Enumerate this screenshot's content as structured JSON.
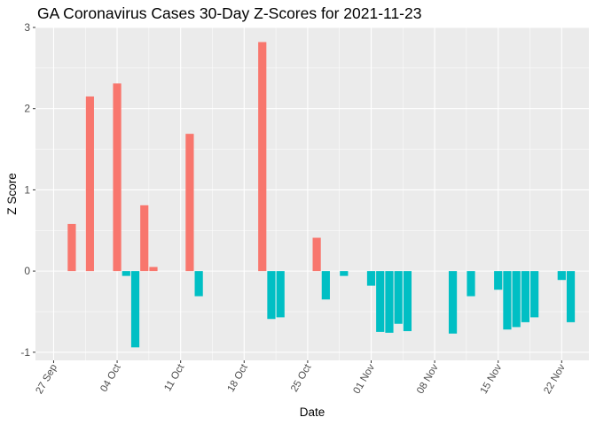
{
  "chart_data": {
    "type": "bar",
    "title": "GA Coronavirus Cases 30-Day Z-Scores for 2021-11-23",
    "xlabel": "Date",
    "ylabel": "Z Score",
    "ylim": [
      -1.1,
      3.0
    ],
    "y_ticks": [
      -1,
      0,
      1,
      2,
      3
    ],
    "x_ticks": [
      "27 Sep",
      "04 Oct",
      "11 Oct",
      "18 Oct",
      "25 Oct",
      "01 Nov",
      "08 Nov",
      "15 Nov",
      "22 Nov"
    ],
    "x_tick_dates": [
      "2021-09-27",
      "2021-10-04",
      "2021-10-11",
      "2021-10-18",
      "2021-10-25",
      "2021-11-01",
      "2021-11-08",
      "2021-11-15",
      "2021-11-22"
    ],
    "x_range": [
      "2021-09-25",
      "2021-11-25"
    ],
    "grid": true,
    "legend": "none",
    "colors": {
      "positive": "#F8766D",
      "negative": "#00BFC4",
      "panel": "#EBEBEB",
      "grid": "#FFFFFF"
    },
    "bars": [
      {
        "date": "2021-09-29",
        "value": 0.58
      },
      {
        "date": "2021-10-01",
        "value": 2.15
      },
      {
        "date": "2021-10-04",
        "value": 2.31
      },
      {
        "date": "2021-10-05",
        "value": -0.06
      },
      {
        "date": "2021-10-06",
        "value": -0.94
      },
      {
        "date": "2021-10-07",
        "value": 0.81
      },
      {
        "date": "2021-10-08",
        "value": 0.05
      },
      {
        "date": "2021-10-12",
        "value": 1.69
      },
      {
        "date": "2021-10-13",
        "value": -0.31
      },
      {
        "date": "2021-10-20",
        "value": 2.82
      },
      {
        "date": "2021-10-21",
        "value": -0.59
      },
      {
        "date": "2021-10-22",
        "value": -0.57
      },
      {
        "date": "2021-10-26",
        "value": 0.41
      },
      {
        "date": "2021-10-27",
        "value": -0.35
      },
      {
        "date": "2021-10-29",
        "value": -0.06
      },
      {
        "date": "2021-11-01",
        "value": -0.18
      },
      {
        "date": "2021-11-02",
        "value": -0.75
      },
      {
        "date": "2021-11-03",
        "value": -0.76
      },
      {
        "date": "2021-11-04",
        "value": -0.65
      },
      {
        "date": "2021-11-05",
        "value": -0.74
      },
      {
        "date": "2021-11-10",
        "value": -0.77
      },
      {
        "date": "2021-11-12",
        "value": -0.31
      },
      {
        "date": "2021-11-15",
        "value": -0.23
      },
      {
        "date": "2021-11-16",
        "value": -0.72
      },
      {
        "date": "2021-11-17",
        "value": -0.69
      },
      {
        "date": "2021-11-18",
        "value": -0.63
      },
      {
        "date": "2021-11-19",
        "value": -0.57
      },
      {
        "date": "2021-11-22",
        "value": -0.11
      },
      {
        "date": "2021-11-23",
        "value": -0.63
      }
    ]
  }
}
